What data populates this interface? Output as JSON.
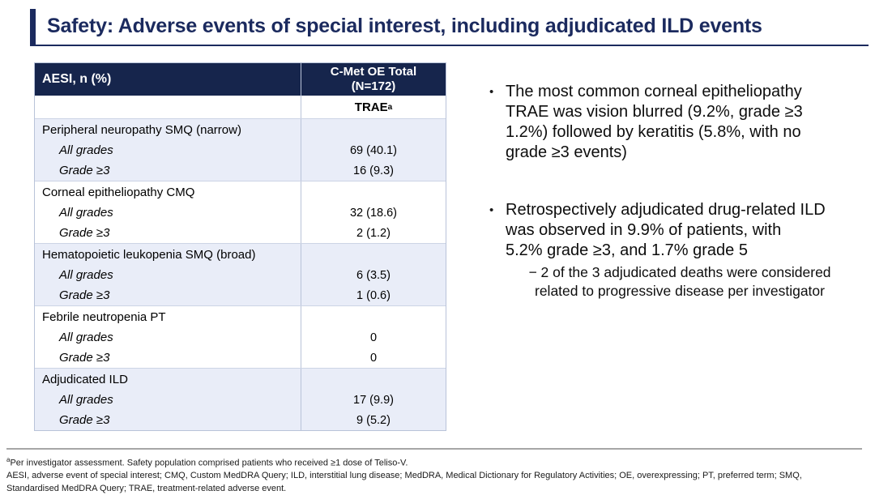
{
  "title": "Safety: Adverse events of special interest, including adjudicated ILD events",
  "table": {
    "header": {
      "col1": "AESI, n (%)",
      "col2": "C-Met OE Total\n(N=172)"
    },
    "subheader": {
      "label": "TRAE",
      "sup": "a"
    },
    "row_labels": {
      "all_grades": "All grades",
      "grade_ge3": "Grade ≥3"
    },
    "groups": [
      {
        "name": "Peripheral neuropathy SMQ (narrow)",
        "all_grades": "69 (40.1)",
        "grade_ge3": "16 (9.3)"
      },
      {
        "name": "Corneal epitheliopathy CMQ",
        "all_grades": "32 (18.6)",
        "grade_ge3": "2 (1.2)"
      },
      {
        "name": "Hematopoietic leukopenia SMQ (broad)",
        "all_grades": "6 (3.5)",
        "grade_ge3": "1 (0.6)"
      },
      {
        "name": "Febrile neutropenia PT",
        "all_grades": "0",
        "grade_ge3": "0"
      },
      {
        "name": "Adjudicated ILD",
        "all_grades": "17 (9.9)",
        "grade_ge3": "9 (5.2)"
      }
    ]
  },
  "bullets": {
    "marker": "•",
    "bullet1": "The most common corneal epitheliopathy\nTRAE was vision blurred (9.2%, grade ≥3\n1.2%) followed by keratitis (5.8%, with no\ngrade ≥3 events)",
    "bullet2": "Retrospectively adjudicated drug-related ILD\nwas observed in 9.9% of patients, with\n5.2% grade ≥3, and 1.7% grade 5",
    "sub_bullet": "− 2 of the 3 adjudicated deaths were considered\nrelated to progressive disease per investigator"
  },
  "footnotes": {
    "note_sup": "a",
    "note": "Per investigator assessment. Safety population comprised patients who received ≥1 dose of Teliso-V.",
    "abbreviations": "AESI, adverse event of special interest; CMQ, Custom MedDRA Query; ILD, interstitial lung disease; MedDRA, Medical Dictionary for Regulatory Activities; OE, overexpressing; PT, preferred term; SMQ,\nStandardised MedDRA Query; TRAE, treatment-related adverse event."
  },
  "colors": {
    "navy_header": "#16254c",
    "title_navy": "#1b2a5e",
    "shaded_row": "#e9edf8",
    "table_border": "#b9c3d9",
    "footnote_rule": "#a6a6a6"
  }
}
